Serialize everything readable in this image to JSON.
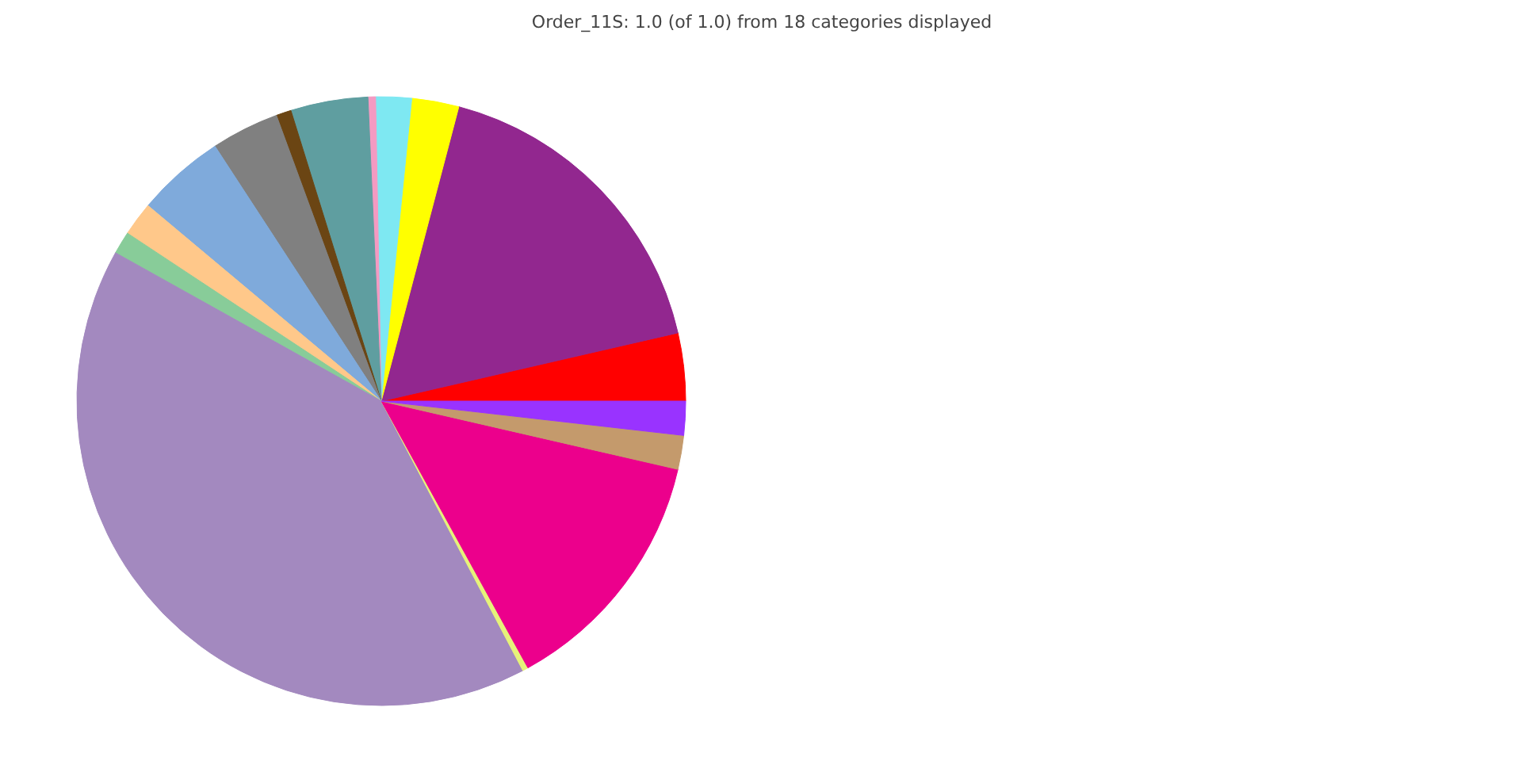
{
  "chart_data": {
    "type": "pie",
    "title": "Order_11S: 1.0 (of 1.0) from 18 categories displayed",
    "categories": [
      null,
      null,
      null,
      null,
      null,
      null,
      null,
      null,
      null,
      null,
      null,
      null,
      null,
      null,
      null,
      null
    ],
    "values": [
      3.6,
      17.3,
      2.5,
      1.9,
      0.4,
      4.1,
      0.8,
      3.6,
      4.7,
      1.8,
      1.2,
      40.8,
      0.3,
      13.4,
      1.8,
      1.8
    ],
    "colors": [
      "#ff0000",
      "#92278f",
      "#ffff00",
      "#7ee8f2",
      "#f49ac2",
      "#5f9ea0",
      "#6b4513",
      "#808080",
      "#7faadb",
      "#ffc88a",
      "#88cc99",
      "#a389bf",
      "#e6f27a",
      "#ec008c",
      "#c49a6c",
      "#9933ff"
    ]
  }
}
